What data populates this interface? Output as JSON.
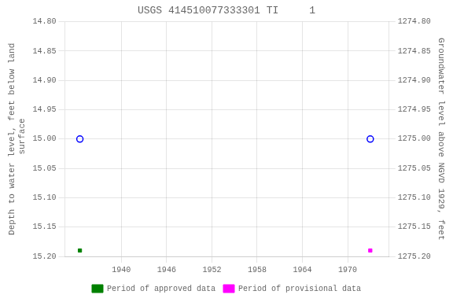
{
  "chart_data": {
    "type": "scatter",
    "title": "USGS 414510077333301 TI     1",
    "y_label": "Depth to water level, feet below land\n surface",
    "y2_label": "Groundwater level above NGVD 1929, feet",
    "xlim": [
      1932.5,
      1975.5
    ],
    "xticks": [
      1940,
      1946,
      1952,
      1958,
      1964,
      1970
    ],
    "ylim": [
      15.2,
      14.8
    ],
    "yticks": [
      {
        "value": 14.8,
        "label": "14.80"
      },
      14.85,
      {
        "value": 14.9,
        "label": "14.90"
      },
      14.95,
      {
        "value": 15.0,
        "label": "15.00"
      },
      15.05,
      {
        "value": 15.1,
        "label": "15.10"
      },
      15.15,
      {
        "value": 15.2,
        "label": "15.20"
      }
    ],
    "y2lim": [
      1275.2,
      1274.8
    ],
    "y2ticks": [
      {
        "value": 1275.2,
        "label": "1275.20"
      },
      1275.15,
      {
        "value": 1275.1,
        "label": "1275.10"
      },
      1275.05,
      {
        "value": 1275.0,
        "label": "1275.00"
      },
      1274.95,
      {
        "value": 1274.9,
        "label": "1274.90"
      },
      1274.85,
      {
        "value": 1274.8,
        "label": "1274.80"
      }
    ],
    "grid": true,
    "legend": "bottom",
    "series": [
      {
        "name": "Period of approved data",
        "color": "#008000",
        "marker": "square",
        "x": [
          1934.5
        ],
        "values": [
          15.19
        ]
      },
      {
        "name": "Period of provisional data",
        "color": "#ff00ff",
        "marker": "square",
        "x": [
          1973.0
        ],
        "values": [
          15.19
        ]
      },
      {
        "color": "#0000ff",
        "marker": "open_circle",
        "x": [
          1934.5
        ],
        "values": [
          15.0
        ]
      },
      {
        "color": "#0000ff",
        "marker": "open_circle",
        "x": [
          1973.0
        ],
        "values": [
          15.0
        ]
      }
    ]
  }
}
